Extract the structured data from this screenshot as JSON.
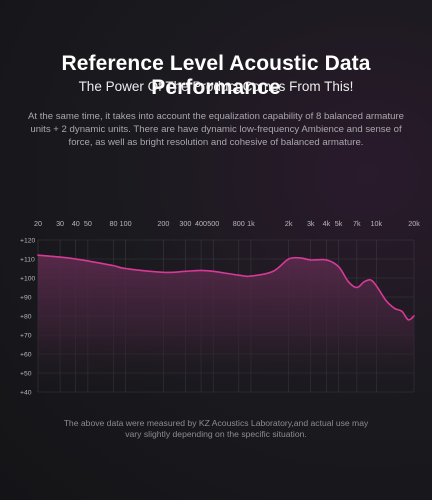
{
  "header": {
    "title": "Reference Level Acoustic Data Performance",
    "subtitle": "The Power Of The Product Comes From This!",
    "description": "At the same time, it takes into account the equalization capability of 8 balanced armature units + 2 dynamic units. There are have dynamic low-frequency Ambience and sense of force, as well as bright resolution and cohesive of balanced armature."
  },
  "footnote": "The above data were measured by KZ Acoustics Laboratory,and actual use may vary slightly depending on the specific situation.",
  "colors": {
    "accent": "#d63a96",
    "fill_top": "#5a2a4c",
    "grid": "#3a383e",
    "tick_text": "#b8b6bc"
  },
  "chart_data": {
    "type": "line",
    "title": "",
    "xlabel": "",
    "ylabel": "",
    "xscale": "log",
    "xlim": [
      20,
      20000
    ],
    "ylim": [
      40,
      120
    ],
    "grid": true,
    "x_ticks": [
      {
        "value": 20,
        "label": "20"
      },
      {
        "value": 30,
        "label": "30"
      },
      {
        "value": 40,
        "label": "40"
      },
      {
        "value": 50,
        "label": "50"
      },
      {
        "value": 80,
        "label": "80"
      },
      {
        "value": 100,
        "label": "100"
      },
      {
        "value": 200,
        "label": "200"
      },
      {
        "value": 300,
        "label": "300"
      },
      {
        "value": 400,
        "label": "400"
      },
      {
        "value": 500,
        "label": "500"
      },
      {
        "value": 800,
        "label": "800"
      },
      {
        "value": 1000,
        "label": "1k"
      },
      {
        "value": 2000,
        "label": "2k"
      },
      {
        "value": 3000,
        "label": "3k"
      },
      {
        "value": 4000,
        "label": "4k"
      },
      {
        "value": 5000,
        "label": "5k"
      },
      {
        "value": 7000,
        "label": "7k"
      },
      {
        "value": 10000,
        "label": "10k"
      },
      {
        "value": 20000,
        "label": "20k"
      }
    ],
    "y_ticks": [
      {
        "value": 120,
        "label": "+120"
      },
      {
        "value": 110,
        "label": "+110"
      },
      {
        "value": 100,
        "label": "+100"
      },
      {
        "value": 90,
        "label": "+90"
      },
      {
        "value": 80,
        "label": "+80"
      },
      {
        "value": 70,
        "label": "+70"
      },
      {
        "value": 60,
        "label": "+60"
      },
      {
        "value": 50,
        "label": "+50"
      },
      {
        "value": 40,
        "label": "+40"
      }
    ],
    "series": [
      {
        "x": [
          20,
          30,
          40,
          50,
          80,
          100,
          200,
          300,
          400,
          500,
          800,
          1000,
          1500,
          2000,
          2500,
          3000,
          4000,
          5000,
          6000,
          7000,
          8000,
          9000,
          10000,
          12000,
          14000,
          16000,
          18000,
          20000
        ],
        "y": [
          112,
          111,
          110,
          109,
          106.5,
          105,
          103,
          103.5,
          104,
          103.5,
          101.5,
          101,
          103.5,
          110,
          110.5,
          109.5,
          109.5,
          106,
          98,
          95,
          98,
          99,
          96,
          88,
          84,
          82.5,
          78,
          80
        ]
      }
    ]
  }
}
